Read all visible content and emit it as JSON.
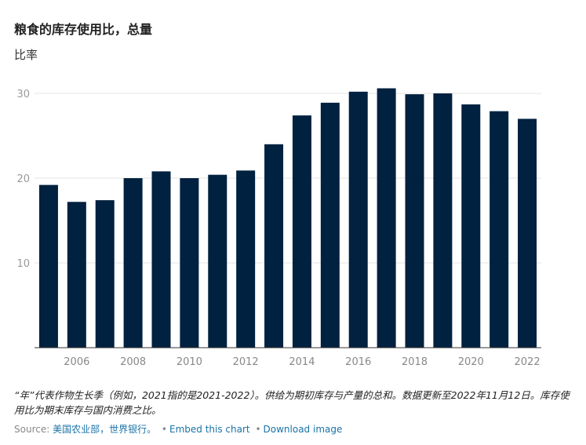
{
  "chart_data": {
    "type": "bar",
    "title": "粮食的库存使用比，总量",
    "ylabel": "比率",
    "xlabel": "",
    "x": [
      2005,
      2006,
      2007,
      2008,
      2009,
      2010,
      2011,
      2012,
      2013,
      2014,
      2015,
      2016,
      2017,
      2018,
      2019,
      2020,
      2021,
      2022
    ],
    "values": [
      19.2,
      17.2,
      17.4,
      20.0,
      20.8,
      20.0,
      20.4,
      20.9,
      24.0,
      27.4,
      28.9,
      30.2,
      30.6,
      29.9,
      30.0,
      28.7,
      27.9,
      27.0
    ],
    "ylim": [
      0,
      30
    ],
    "yticks": [
      10,
      20,
      30
    ],
    "xticks": [
      2006,
      2008,
      2010,
      2012,
      2014,
      2016,
      2018,
      2020,
      2022
    ],
    "grid": true,
    "legend": "none",
    "bar_color": "#00213f"
  },
  "note": "“年”代表作物生长季（例如，2021指的是2021-2022）。供给为期初库存与产量的总和。数据更新至2022年11月12日。库存使用比为期末库存与国内消费之比。",
  "source": {
    "prefix": "Source: ",
    "link_text": "美国农业部，世界银行。",
    "separator": "•",
    "embed_label": "Embed this chart",
    "download_label": "Download image"
  },
  "colors": {
    "bar": "#00213f",
    "grid": "#e3e3e3",
    "tick_text": "#999999",
    "link": "#1a73a8"
  }
}
